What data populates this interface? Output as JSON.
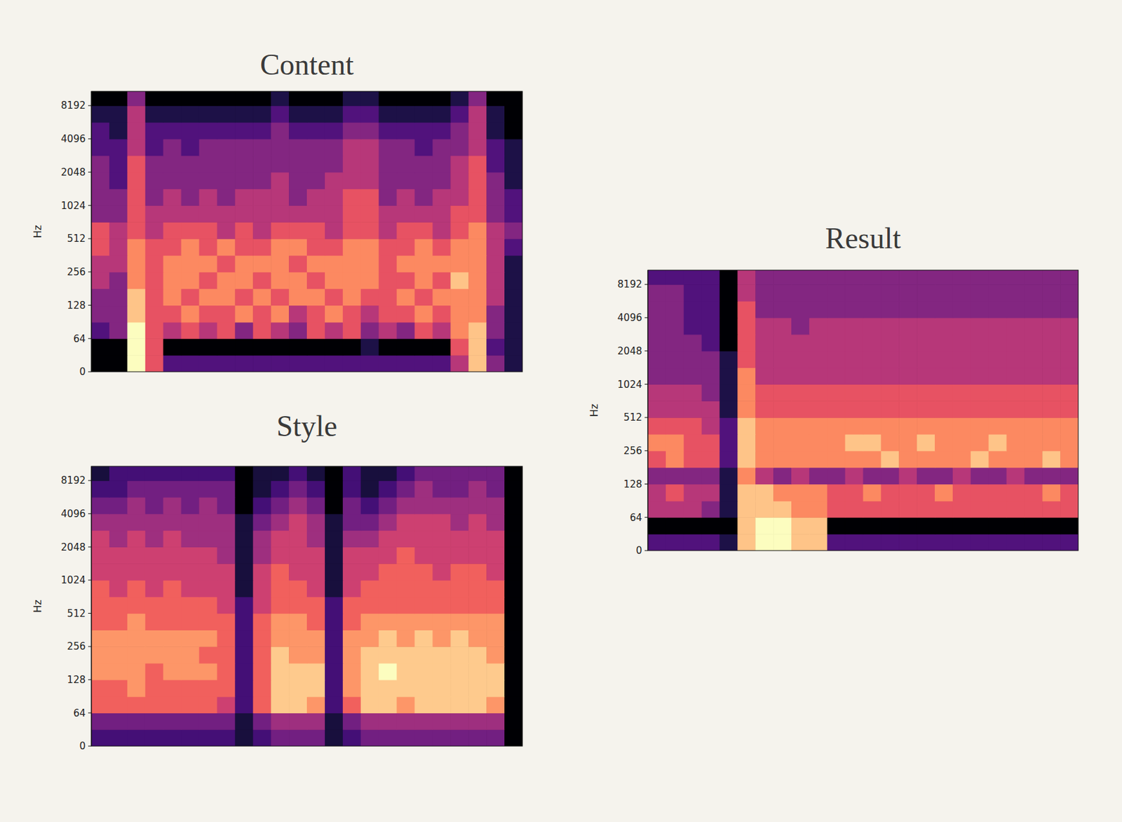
{
  "chart_data": [
    {
      "type": "heatmap",
      "title": "Content",
      "y_label": "Hz",
      "log": "y",
      "tick_labels": "y",
      "ylim": [
        0,
        11025
      ],
      "yticks": [
        0,
        64,
        128,
        256,
        512,
        1024,
        2048,
        4096,
        8192
      ],
      "y_bins": [
        0,
        32,
        64,
        90,
        128,
        181,
        256,
        362,
        512,
        724,
        1024,
        1448,
        2048,
        2896,
        4096,
        5793,
        8192,
        11025
      ],
      "cells": [
        [
          0,
          0,
          8,
          5,
          2,
          2,
          2,
          2,
          2,
          2,
          2,
          2,
          2,
          2,
          2,
          2,
          2,
          2,
          2,
          2,
          4,
          7,
          3,
          1
        ],
        [
          0,
          0,
          8,
          5,
          0,
          0,
          0,
          0,
          0,
          0,
          0,
          0,
          0,
          0,
          0,
          1,
          0,
          0,
          0,
          0,
          5,
          7,
          2,
          1
        ],
        [
          2,
          3,
          8,
          5,
          4,
          5,
          4,
          5,
          3,
          5,
          4,
          3,
          5,
          4,
          5,
          3,
          4,
          3,
          5,
          4,
          6,
          7,
          3,
          1
        ],
        [
          3,
          3,
          7,
          5,
          5,
          6,
          5,
          5,
          6,
          5,
          6,
          4,
          5,
          6,
          5,
          4,
          5,
          5,
          6,
          5,
          6,
          6,
          3,
          1
        ],
        [
          3,
          3,
          7,
          5,
          6,
          5,
          6,
          6,
          5,
          6,
          5,
          6,
          6,
          5,
          6,
          5,
          5,
          6,
          5,
          6,
          6,
          6,
          4,
          1
        ],
        [
          4,
          3,
          6,
          5,
          6,
          6,
          5,
          6,
          6,
          5,
          6,
          6,
          5,
          6,
          6,
          6,
          5,
          5,
          6,
          5,
          7,
          6,
          4,
          1
        ],
        [
          4,
          4,
          6,
          5,
          6,
          6,
          6,
          5,
          6,
          6,
          6,
          5,
          6,
          6,
          6,
          6,
          5,
          6,
          6,
          6,
          6,
          6,
          4,
          1
        ],
        [
          5,
          4,
          6,
          5,
          5,
          6,
          5,
          6,
          5,
          5,
          6,
          6,
          5,
          5,
          6,
          6,
          5,
          5,
          6,
          5,
          6,
          6,
          4,
          2
        ],
        [
          5,
          4,
          5,
          4,
          5,
          5,
          5,
          4,
          5,
          4,
          5,
          5,
          5,
          4,
          5,
          5,
          4,
          5,
          5,
          4,
          5,
          6,
          4,
          3
        ],
        [
          3,
          3,
          5,
          4,
          4,
          4,
          4,
          4,
          4,
          4,
          4,
          4,
          4,
          4,
          5,
          5,
          4,
          4,
          4,
          4,
          5,
          5,
          3,
          2
        ],
        [
          3,
          3,
          5,
          3,
          4,
          3,
          4,
          3,
          4,
          4,
          4,
          3,
          4,
          4,
          5,
          5,
          3,
          4,
          3,
          4,
          4,
          5,
          3,
          2
        ],
        [
          3,
          2,
          5,
          3,
          3,
          3,
          3,
          3,
          3,
          3,
          4,
          3,
          3,
          4,
          4,
          4,
          3,
          3,
          3,
          3,
          4,
          5,
          3,
          1
        ],
        [
          3,
          2,
          5,
          3,
          3,
          3,
          3,
          3,
          3,
          3,
          3,
          3,
          3,
          3,
          4,
          4,
          3,
          3,
          3,
          3,
          4,
          5,
          2,
          1
        ],
        [
          2,
          2,
          4,
          2,
          3,
          2,
          3,
          3,
          3,
          3,
          3,
          3,
          3,
          3,
          4,
          4,
          3,
          3,
          2,
          3,
          3,
          4,
          2,
          1
        ],
        [
          2,
          1,
          4,
          2,
          2,
          2,
          2,
          2,
          2,
          2,
          3,
          2,
          2,
          2,
          3,
          3,
          2,
          2,
          2,
          2,
          3,
          4,
          1,
          0
        ],
        [
          1,
          1,
          4,
          1,
          1,
          1,
          1,
          1,
          1,
          1,
          2,
          1,
          1,
          1,
          2,
          2,
          1,
          1,
          1,
          1,
          2,
          4,
          1,
          0
        ],
        [
          0,
          0,
          3,
          0,
          0,
          0,
          0,
          0,
          0,
          0,
          1,
          0,
          0,
          0,
          1,
          1,
          0,
          0,
          0,
          0,
          1,
          3,
          0,
          0
        ]
      ]
    },
    {
      "type": "heatmap",
      "title": "Style",
      "y_label": "Hz",
      "log": "y",
      "tick_labels": "y",
      "ylim": [
        0,
        11025
      ],
      "yticks": [
        0,
        64,
        128,
        256,
        512,
        1024,
        2048,
        4096,
        8192
      ],
      "y_bins": [
        0,
        32,
        64,
        90,
        128,
        181,
        256,
        362,
        512,
        724,
        1024,
        1448,
        2048,
        2896,
        4096,
        5793,
        8192,
        11025
      ],
      "cells": [
        [
          2,
          2,
          2,
          2,
          2,
          2,
          2,
          2,
          1,
          2,
          3,
          3,
          3,
          1,
          2,
          3,
          3,
          3,
          3,
          3,
          3,
          3,
          3,
          0
        ],
        [
          3,
          3,
          3,
          3,
          3,
          3,
          3,
          3,
          1,
          3,
          4,
          4,
          4,
          1,
          3,
          4,
          4,
          4,
          4,
          4,
          4,
          4,
          4,
          0
        ],
        [
          6,
          6,
          6,
          6,
          6,
          6,
          6,
          5,
          2,
          6,
          8,
          8,
          7,
          2,
          6,
          8,
          8,
          7,
          8,
          8,
          8,
          8,
          7,
          0
        ],
        [
          6,
          6,
          7,
          6,
          6,
          6,
          6,
          6,
          2,
          6,
          8,
          8,
          8,
          2,
          7,
          8,
          8,
          8,
          8,
          8,
          8,
          8,
          8,
          0
        ],
        [
          7,
          7,
          7,
          6,
          7,
          7,
          7,
          6,
          2,
          6,
          8,
          8,
          8,
          2,
          7,
          8,
          9,
          8,
          8,
          8,
          8,
          8,
          8,
          0
        ],
        [
          7,
          7,
          7,
          7,
          7,
          7,
          6,
          6,
          2,
          6,
          8,
          7,
          7,
          2,
          7,
          8,
          8,
          8,
          8,
          8,
          8,
          8,
          7,
          0
        ],
        [
          7,
          7,
          7,
          7,
          7,
          7,
          7,
          6,
          2,
          6,
          7,
          7,
          7,
          2,
          7,
          7,
          8,
          7,
          8,
          7,
          8,
          7,
          7,
          0
        ],
        [
          6,
          6,
          7,
          6,
          6,
          6,
          6,
          6,
          2,
          6,
          7,
          7,
          6,
          2,
          6,
          7,
          7,
          7,
          7,
          7,
          7,
          7,
          7,
          0
        ],
        [
          6,
          6,
          6,
          6,
          6,
          6,
          6,
          5,
          2,
          5,
          6,
          6,
          6,
          2,
          6,
          6,
          6,
          6,
          6,
          6,
          6,
          6,
          6,
          0
        ],
        [
          6,
          5,
          6,
          5,
          6,
          5,
          5,
          5,
          1,
          5,
          6,
          6,
          5,
          1,
          5,
          6,
          6,
          6,
          6,
          6,
          6,
          6,
          6,
          0
        ],
        [
          5,
          5,
          5,
          5,
          5,
          5,
          5,
          5,
          1,
          5,
          6,
          5,
          5,
          1,
          5,
          5,
          6,
          6,
          6,
          5,
          6,
          6,
          5,
          0
        ],
        [
          5,
          5,
          5,
          5,
          5,
          5,
          5,
          4,
          1,
          4,
          5,
          5,
          5,
          1,
          5,
          5,
          5,
          6,
          5,
          5,
          5,
          5,
          5,
          0
        ],
        [
          5,
          4,
          5,
          4,
          5,
          4,
          4,
          4,
          1,
          4,
          5,
          5,
          4,
          1,
          4,
          4,
          5,
          5,
          5,
          5,
          5,
          5,
          5,
          0
        ],
        [
          4,
          4,
          4,
          4,
          4,
          4,
          4,
          4,
          1,
          3,
          4,
          5,
          4,
          1,
          3,
          3,
          4,
          5,
          5,
          5,
          4,
          5,
          4,
          0
        ],
        [
          3,
          3,
          4,
          3,
          4,
          3,
          4,
          3,
          0,
          2,
          3,
          4,
          3,
          0,
          3,
          2,
          3,
          4,
          4,
          4,
          4,
          4,
          4,
          0
        ],
        [
          2,
          2,
          3,
          3,
          3,
          3,
          3,
          3,
          0,
          1,
          2,
          3,
          2,
          0,
          2,
          1,
          2,
          3,
          4,
          3,
          3,
          4,
          3,
          0
        ],
        [
          1,
          2,
          2,
          2,
          2,
          2,
          2,
          2,
          0,
          1,
          1,
          2,
          1,
          0,
          2,
          1,
          1,
          2,
          3,
          3,
          3,
          3,
          3,
          0
        ]
      ]
    },
    {
      "type": "heatmap",
      "title": "Result",
      "y_label": "Hz",
      "log": "y",
      "tick_labels": "y",
      "ylim": [
        0,
        11025
      ],
      "yticks": [
        0,
        64,
        128,
        256,
        512,
        1024,
        2048,
        4096,
        8192
      ],
      "y_bins": [
        0,
        32,
        64,
        90,
        128,
        181,
        256,
        362,
        512,
        724,
        1024,
        1448,
        2048,
        2896,
        4096,
        5793,
        8192,
        11025
      ],
      "cells": [
        [
          2,
          2,
          2,
          2,
          1,
          7,
          8,
          8,
          7,
          7,
          2,
          2,
          2,
          2,
          2,
          2,
          2,
          2,
          2,
          2,
          2,
          2,
          2,
          2
        ],
        [
          0,
          0,
          0,
          0,
          0,
          7,
          8,
          8,
          7,
          7,
          0,
          0,
          0,
          0,
          0,
          0,
          0,
          0,
          0,
          0,
          0,
          0,
          0,
          0
        ],
        [
          4,
          4,
          4,
          3,
          1,
          7,
          7,
          7,
          6,
          6,
          5,
          5,
          5,
          5,
          5,
          5,
          5,
          5,
          5,
          5,
          5,
          5,
          5,
          5
        ],
        [
          4,
          5,
          4,
          4,
          1,
          7,
          7,
          6,
          6,
          6,
          5,
          5,
          6,
          5,
          5,
          5,
          6,
          5,
          5,
          5,
          5,
          5,
          6,
          5
        ],
        [
          3,
          3,
          3,
          3,
          1,
          6,
          4,
          3,
          4,
          3,
          3,
          4,
          3,
          3,
          4,
          3,
          3,
          4,
          3,
          3,
          4,
          3,
          3,
          3
        ],
        [
          5,
          6,
          5,
          5,
          2,
          7,
          6,
          6,
          6,
          6,
          6,
          6,
          6,
          7,
          6,
          6,
          6,
          6,
          7,
          6,
          6,
          6,
          7,
          6
        ],
        [
          6,
          6,
          5,
          5,
          2,
          7,
          6,
          6,
          6,
          6,
          6,
          7,
          7,
          6,
          6,
          7,
          6,
          6,
          6,
          7,
          6,
          6,
          6,
          6
        ],
        [
          5,
          5,
          5,
          4,
          2,
          7,
          6,
          6,
          6,
          6,
          6,
          6,
          6,
          6,
          6,
          6,
          6,
          6,
          6,
          6,
          6,
          6,
          6,
          6
        ],
        [
          4,
          4,
          4,
          4,
          1,
          6,
          5,
          5,
          5,
          5,
          5,
          5,
          5,
          5,
          5,
          5,
          5,
          5,
          5,
          5,
          5,
          5,
          5,
          5
        ],
        [
          4,
          4,
          4,
          3,
          1,
          6,
          5,
          5,
          5,
          5,
          5,
          5,
          5,
          5,
          5,
          5,
          5,
          5,
          5,
          5,
          5,
          5,
          5,
          5
        ],
        [
          3,
          3,
          3,
          3,
          1,
          6,
          4,
          4,
          4,
          4,
          4,
          4,
          4,
          4,
          4,
          4,
          4,
          4,
          4,
          4,
          4,
          4,
          4,
          4
        ],
        [
          3,
          3,
          3,
          3,
          1,
          5,
          4,
          4,
          4,
          4,
          4,
          4,
          4,
          4,
          4,
          4,
          4,
          4,
          4,
          4,
          4,
          4,
          4,
          4
        ],
        [
          3,
          3,
          3,
          2,
          0,
          5,
          4,
          4,
          4,
          4,
          4,
          4,
          4,
          4,
          4,
          4,
          4,
          4,
          4,
          4,
          4,
          4,
          4,
          4
        ],
        [
          3,
          3,
          2,
          2,
          0,
          5,
          4,
          4,
          3,
          4,
          4,
          4,
          4,
          4,
          4,
          4,
          4,
          4,
          4,
          4,
          4,
          4,
          4,
          4
        ],
        [
          3,
          3,
          2,
          2,
          0,
          5,
          3,
          3,
          3,
          3,
          3,
          3,
          3,
          3,
          3,
          3,
          3,
          3,
          3,
          3,
          3,
          3,
          3,
          3
        ],
        [
          3,
          3,
          2,
          2,
          0,
          4,
          3,
          3,
          3,
          3,
          3,
          3,
          3,
          3,
          3,
          3,
          3,
          3,
          3,
          3,
          3,
          3,
          3,
          3
        ],
        [
          2,
          2,
          2,
          2,
          0,
          4,
          3,
          3,
          3,
          3,
          3,
          3,
          3,
          3,
          3,
          3,
          3,
          3,
          3,
          3,
          3,
          3,
          3,
          3
        ]
      ]
    }
  ]
}
